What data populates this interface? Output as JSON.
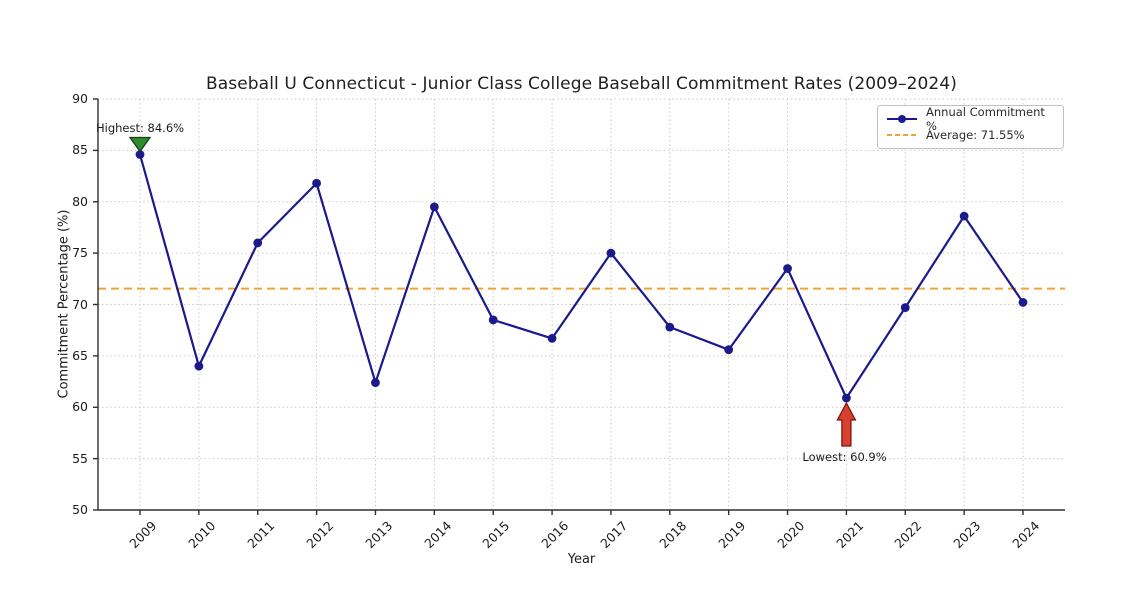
{
  "chart_data": {
    "type": "line",
    "title": "Baseball U Connecticut - Junior Class College Baseball Commitment Rates (2009–2024)",
    "xlabel": "Year",
    "ylabel": "Commitment Percentage (%)",
    "x": [
      2009,
      2010,
      2011,
      2012,
      2013,
      2014,
      2015,
      2016,
      2017,
      2018,
      2019,
      2020,
      2021,
      2022,
      2023,
      2024
    ],
    "series": [
      {
        "name": "Annual Commitment %",
        "values": [
          84.6,
          64.0,
          76.0,
          81.8,
          62.4,
          79.5,
          68.5,
          66.7,
          75.0,
          67.8,
          65.6,
          73.5,
          60.9,
          69.7,
          78.6,
          70.2
        ]
      }
    ],
    "average": {
      "label": "Average: 71.55%",
      "value": 71.55
    },
    "ylim": [
      50,
      90
    ],
    "yticks": [
      50,
      55,
      60,
      65,
      70,
      75,
      80,
      85,
      90
    ],
    "grid": true,
    "legend_position": "upper right",
    "annotations": [
      {
        "text": "Highest: 84.6%",
        "x": 2009,
        "y": 84.6,
        "marker": "green-triangle-down"
      },
      {
        "text": "Lowest: 60.9%",
        "x": 2021,
        "y": 60.9,
        "marker": "red-arrow-up"
      }
    ],
    "colors": {
      "line": "#1a1a8c",
      "average": "#f0a437",
      "highest_marker": "#2e8b2e",
      "highest_marker_edge": "#173f17",
      "lowest_marker": "#d8402f",
      "lowest_marker_edge": "#7c150b"
    }
  }
}
